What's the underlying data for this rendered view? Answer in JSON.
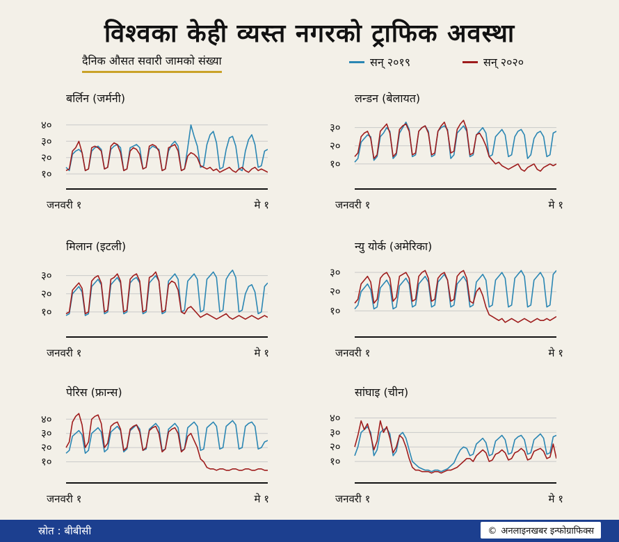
{
  "title": "विश्वका केही व्यस्त नगरको ट्राफिक अवस्था",
  "subtitle": "दैनिक औसत सवारी जामको संख्या",
  "legend": [
    {
      "label": "सन् २०१९",
      "color": "#2a86b3"
    },
    {
      "label": "सन् २०२०",
      "color": "#9e1c1c"
    }
  ],
  "footer": {
    "source": "स्रोत : बीबीसी",
    "credit": "अनलाइनखबर इन्फोग्राफिक्स",
    "credit_icon": "copyright-icon"
  },
  "chart_data": [
    {
      "type": "line",
      "title": "बर्लिन (जर्मनी)",
      "x_start_label": "जनवरी १",
      "x_end_label": "मे १",
      "yticks": [
        10,
        20,
        30,
        40
      ],
      "ytick_labels": [
        "१०",
        "२०",
        "३०",
        "४०"
      ],
      "ylim": [
        5,
        45
      ],
      "series": [
        {
          "name": "सन् २०१९",
          "values": [
            14,
            12,
            22,
            24,
            25,
            23,
            12,
            13,
            24,
            26,
            27,
            25,
            13,
            14,
            25,
            27,
            28,
            26,
            12,
            13,
            26,
            27,
            28,
            26,
            13,
            14,
            25,
            27,
            26,
            25,
            12,
            13,
            24,
            28,
            30,
            27,
            12,
            13,
            26,
            40,
            33,
            27,
            14,
            15,
            28,
            34,
            36,
            29,
            13,
            14,
            25,
            32,
            33,
            27,
            13,
            12,
            24,
            31,
            34,
            28,
            14,
            15,
            24,
            25
          ]
        },
        {
          "name": "सन् २०२०",
          "values": [
            12,
            13,
            24,
            26,
            30,
            23,
            12,
            13,
            26,
            27,
            26,
            24,
            13,
            14,
            27,
            29,
            28,
            23,
            12,
            13,
            24,
            26,
            25,
            22,
            13,
            14,
            27,
            28,
            27,
            24,
            12,
            13,
            26,
            27,
            28,
            24,
            12,
            13,
            21,
            23,
            22,
            20,
            15,
            14,
            13,
            14,
            12,
            13,
            11,
            12,
            13,
            14,
            12,
            11,
            13,
            14,
            12,
            11,
            13,
            14,
            12,
            13,
            12,
            11
          ]
        }
      ]
    },
    {
      "type": "line",
      "title": "लन्डन (बेलायत)",
      "x_start_label": "जनवरी १",
      "x_end_label": "मे १",
      "yticks": [
        10,
        20,
        30
      ],
      "ytick_labels": [
        "१०",
        "२०",
        "३०"
      ],
      "ylim": [
        0,
        36
      ],
      "series": [
        {
          "name": "सन् २०१९",
          "values": [
            11,
            13,
            22,
            24,
            26,
            25,
            12,
            14,
            25,
            27,
            30,
            28,
            13,
            15,
            27,
            30,
            33,
            29,
            14,
            15,
            28,
            30,
            31,
            28,
            14,
            15,
            28,
            30,
            31,
            29,
            13,
            15,
            27,
            29,
            31,
            28,
            14,
            15,
            26,
            28,
            30,
            27,
            14,
            15,
            25,
            27,
            29,
            26,
            14,
            15,
            25,
            28,
            29,
            26,
            13,
            15,
            24,
            27,
            28,
            25,
            14,
            15,
            27,
            28
          ]
        },
        {
          "name": "सन् २०२०",
          "values": [
            14,
            16,
            25,
            27,
            28,
            24,
            13,
            15,
            28,
            30,
            32,
            27,
            14,
            16,
            29,
            31,
            32,
            28,
            15,
            16,
            28,
            30,
            31,
            27,
            15,
            16,
            28,
            31,
            33,
            28,
            16,
            17,
            29,
            32,
            34,
            29,
            15,
            16,
            26,
            27,
            24,
            20,
            14,
            12,
            10,
            11,
            9,
            8,
            7,
            8,
            9,
            10,
            7,
            6,
            8,
            9,
            10,
            7,
            6,
            8,
            9,
            10,
            9,
            10
          ]
        }
      ]
    },
    {
      "type": "line",
      "title": "मिलान (इटली)",
      "x_start_label": "जनवरी १",
      "x_end_label": "मे १",
      "yticks": [
        10,
        20,
        30
      ],
      "ytick_labels": [
        "१०",
        "२०",
        "३०"
      ],
      "ylim": [
        0,
        36
      ],
      "series": [
        {
          "name": "सन् २०१९",
          "values": [
            8,
            9,
            20,
            22,
            24,
            21,
            8,
            9,
            24,
            26,
            28,
            25,
            9,
            10,
            25,
            27,
            29,
            26,
            9,
            10,
            26,
            28,
            29,
            26,
            9,
            10,
            26,
            28,
            30,
            27,
            9,
            10,
            27,
            29,
            31,
            28,
            10,
            11,
            27,
            29,
            31,
            28,
            10,
            11,
            28,
            30,
            32,
            29,
            10,
            11,
            28,
            31,
            33,
            29,
            10,
            11,
            20,
            24,
            25,
            21,
            9,
            10,
            24,
            26
          ]
        },
        {
          "name": "सन् २०२०",
          "values": [
            9,
            10,
            22,
            24,
            26,
            23,
            9,
            10,
            27,
            29,
            30,
            26,
            10,
            11,
            28,
            29,
            31,
            27,
            10,
            11,
            28,
            30,
            31,
            27,
            10,
            11,
            29,
            30,
            32,
            27,
            10,
            11,
            25,
            27,
            26,
            22,
            10,
            9,
            12,
            13,
            11,
            9,
            7,
            8,
            9,
            8,
            7,
            6,
            7,
            8,
            9,
            7,
            6,
            7,
            8,
            7,
            6,
            7,
            8,
            7,
            6,
            7,
            8,
            7
          ]
        }
      ]
    },
    {
      "type": "line",
      "title": "न्यु योर्क (अमेरिका)",
      "x_start_label": "जनवरी १",
      "x_end_label": "मे १",
      "yticks": [
        10,
        20,
        30
      ],
      "ytick_labels": [
        "१०",
        "२०",
        "३०"
      ],
      "ylim": [
        0,
        34
      ],
      "series": [
        {
          "name": "सन् २०१९",
          "values": [
            11,
            13,
            20,
            22,
            24,
            21,
            11,
            12,
            22,
            24,
            26,
            23,
            11,
            12,
            23,
            25,
            27,
            24,
            12,
            13,
            24,
            26,
            28,
            25,
            12,
            13,
            25,
            27,
            29,
            26,
            12,
            13,
            24,
            26,
            28,
            25,
            12,
            13,
            25,
            27,
            29,
            26,
            12,
            13,
            26,
            28,
            30,
            27,
            12,
            13,
            27,
            29,
            31,
            28,
            12,
            13,
            26,
            28,
            30,
            27,
            12,
            13,
            29,
            31
          ]
        },
        {
          "name": "सन् २०२०",
          "values": [
            14,
            16,
            24,
            26,
            28,
            25,
            14,
            16,
            27,
            29,
            30,
            27,
            15,
            17,
            28,
            29,
            30,
            27,
            15,
            16,
            28,
            30,
            31,
            27,
            15,
            16,
            27,
            29,
            30,
            26,
            15,
            16,
            28,
            30,
            31,
            27,
            15,
            14,
            20,
            22,
            18,
            12,
            8,
            7,
            6,
            5,
            6,
            4,
            5,
            6,
            5,
            4,
            5,
            6,
            5,
            4,
            5,
            6,
            5,
            5,
            6,
            5,
            6,
            7
          ]
        }
      ]
    },
    {
      "type": "line",
      "title": "पेरिस (फ्रान्स)",
      "x_start_label": "जनवरी १",
      "x_end_label": "मे १",
      "yticks": [
        10,
        20,
        30,
        40
      ],
      "ytick_labels": [
        "१०",
        "२०",
        "३०",
        "४०"
      ],
      "ylim": [
        0,
        46
      ],
      "series": [
        {
          "name": "सन् २०१९",
          "values": [
            16,
            18,
            28,
            30,
            32,
            29,
            16,
            18,
            30,
            32,
            34,
            31,
            17,
            19,
            31,
            33,
            35,
            32,
            17,
            19,
            32,
            34,
            36,
            33,
            18,
            19,
            33,
            35,
            37,
            34,
            18,
            19,
            33,
            35,
            37,
            34,
            18,
            19,
            34,
            36,
            38,
            35,
            18,
            19,
            34,
            36,
            38,
            35,
            19,
            20,
            35,
            37,
            39,
            36,
            19,
            20,
            35,
            37,
            38,
            35,
            19,
            20,
            24,
            25
          ]
        },
        {
          "name": "सन् २०२०",
          "values": [
            20,
            24,
            38,
            42,
            44,
            36,
            20,
            24,
            40,
            42,
            43,
            37,
            20,
            23,
            35,
            37,
            38,
            33,
            18,
            20,
            33,
            35,
            36,
            31,
            18,
            20,
            32,
            34,
            35,
            30,
            17,
            19,
            31,
            33,
            34,
            30,
            17,
            19,
            28,
            30,
            25,
            20,
            12,
            10,
            6,
            5,
            5,
            4,
            5,
            5,
            4,
            4,
            5,
            5,
            4,
            4,
            5,
            5,
            4,
            4,
            5,
            5,
            4,
            4
          ]
        }
      ]
    },
    {
      "type": "line",
      "title": "सांघाइ (चीन)",
      "x_start_label": "जनवरी १",
      "x_end_label": "मे १",
      "yticks": [
        10,
        20,
        30,
        40
      ],
      "ytick_labels": [
        "१०",
        "२०",
        "३०",
        "४०"
      ],
      "ylim": [
        0,
        45
      ],
      "series": [
        {
          "name": "सन् २०१९",
          "values": [
            14,
            20,
            30,
            32,
            34,
            30,
            14,
            18,
            30,
            32,
            33,
            29,
            14,
            17,
            28,
            30,
            26,
            18,
            10,
            8,
            6,
            5,
            4,
            4,
            3,
            4,
            4,
            3,
            4,
            5,
            7,
            9,
            14,
            18,
            20,
            19,
            14,
            15,
            22,
            24,
            26,
            23,
            14,
            15,
            24,
            26,
            28,
            25,
            15,
            16,
            25,
            27,
            28,
            25,
            15,
            16,
            25,
            27,
            29,
            26,
            15,
            16,
            27,
            28
          ]
        },
        {
          "name": "सन् २०२०",
          "values": [
            20,
            28,
            38,
            32,
            36,
            28,
            18,
            24,
            38,
            30,
            34,
            26,
            16,
            20,
            28,
            26,
            20,
            12,
            6,
            4,
            4,
            3,
            3,
            3,
            2,
            3,
            3,
            2,
            3,
            4,
            4,
            5,
            6,
            8,
            10,
            12,
            12,
            10,
            14,
            16,
            18,
            16,
            10,
            11,
            15,
            16,
            18,
            16,
            11,
            12,
            16,
            17,
            19,
            17,
            11,
            12,
            17,
            18,
            19,
            17,
            12,
            13,
            22,
            12
          ]
        }
      ]
    }
  ]
}
